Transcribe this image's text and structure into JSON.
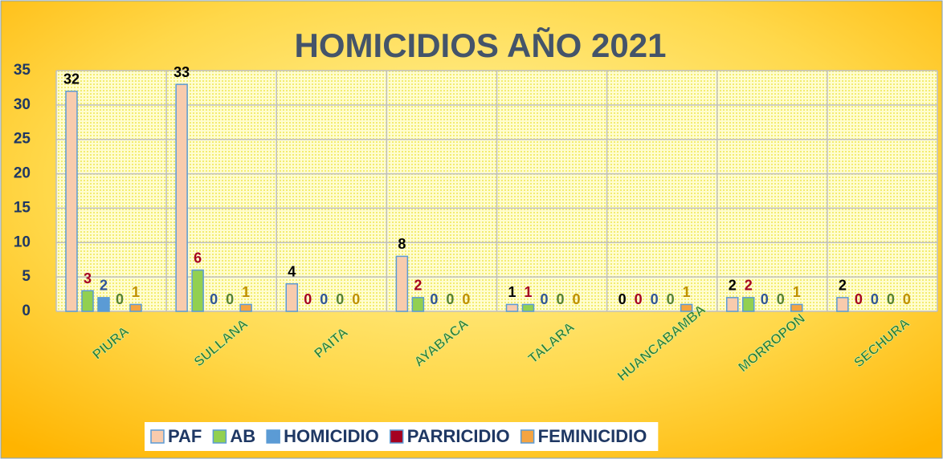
{
  "chart_data": {
    "type": "bar",
    "title": "HOMICIDIOS AÑO 2021",
    "categories": [
      "PIURA",
      "SULLANA",
      "PAITA",
      "AYABACA",
      "TALARA",
      "HUANCABAMBA",
      "MORROPON",
      "SECHURA"
    ],
    "series": [
      {
        "name": "PAF",
        "color": "#f8cbad",
        "label_color": "#000000",
        "values": [
          32,
          33,
          4,
          8,
          1,
          0,
          2,
          2
        ]
      },
      {
        "name": "AB",
        "color": "#92d050",
        "label_color": "#a50021",
        "values": [
          3,
          6,
          0,
          2,
          1,
          0,
          2,
          0
        ]
      },
      {
        "name": "HOMICIDIO",
        "color": "#5b9bd5",
        "label_color": "#2f5597",
        "values": [
          2,
          0,
          0,
          0,
          0,
          0,
          0,
          0
        ]
      },
      {
        "name": "PARRICIDIO",
        "color": "#a50021",
        "label_color": "#548235",
        "values": [
          0,
          0,
          0,
          0,
          0,
          0,
          0,
          0
        ]
      },
      {
        "name": "FEMINICIDIO",
        "color": "#f4a442",
        "label_color": "#bf9000",
        "values": [
          1,
          1,
          0,
          0,
          0,
          1,
          1,
          0
        ]
      }
    ],
    "ylim": [
      0,
      35
    ],
    "yticks": [
      0,
      5,
      10,
      15,
      20,
      25,
      30,
      35
    ],
    "grid": true,
    "legend": "bottom"
  }
}
